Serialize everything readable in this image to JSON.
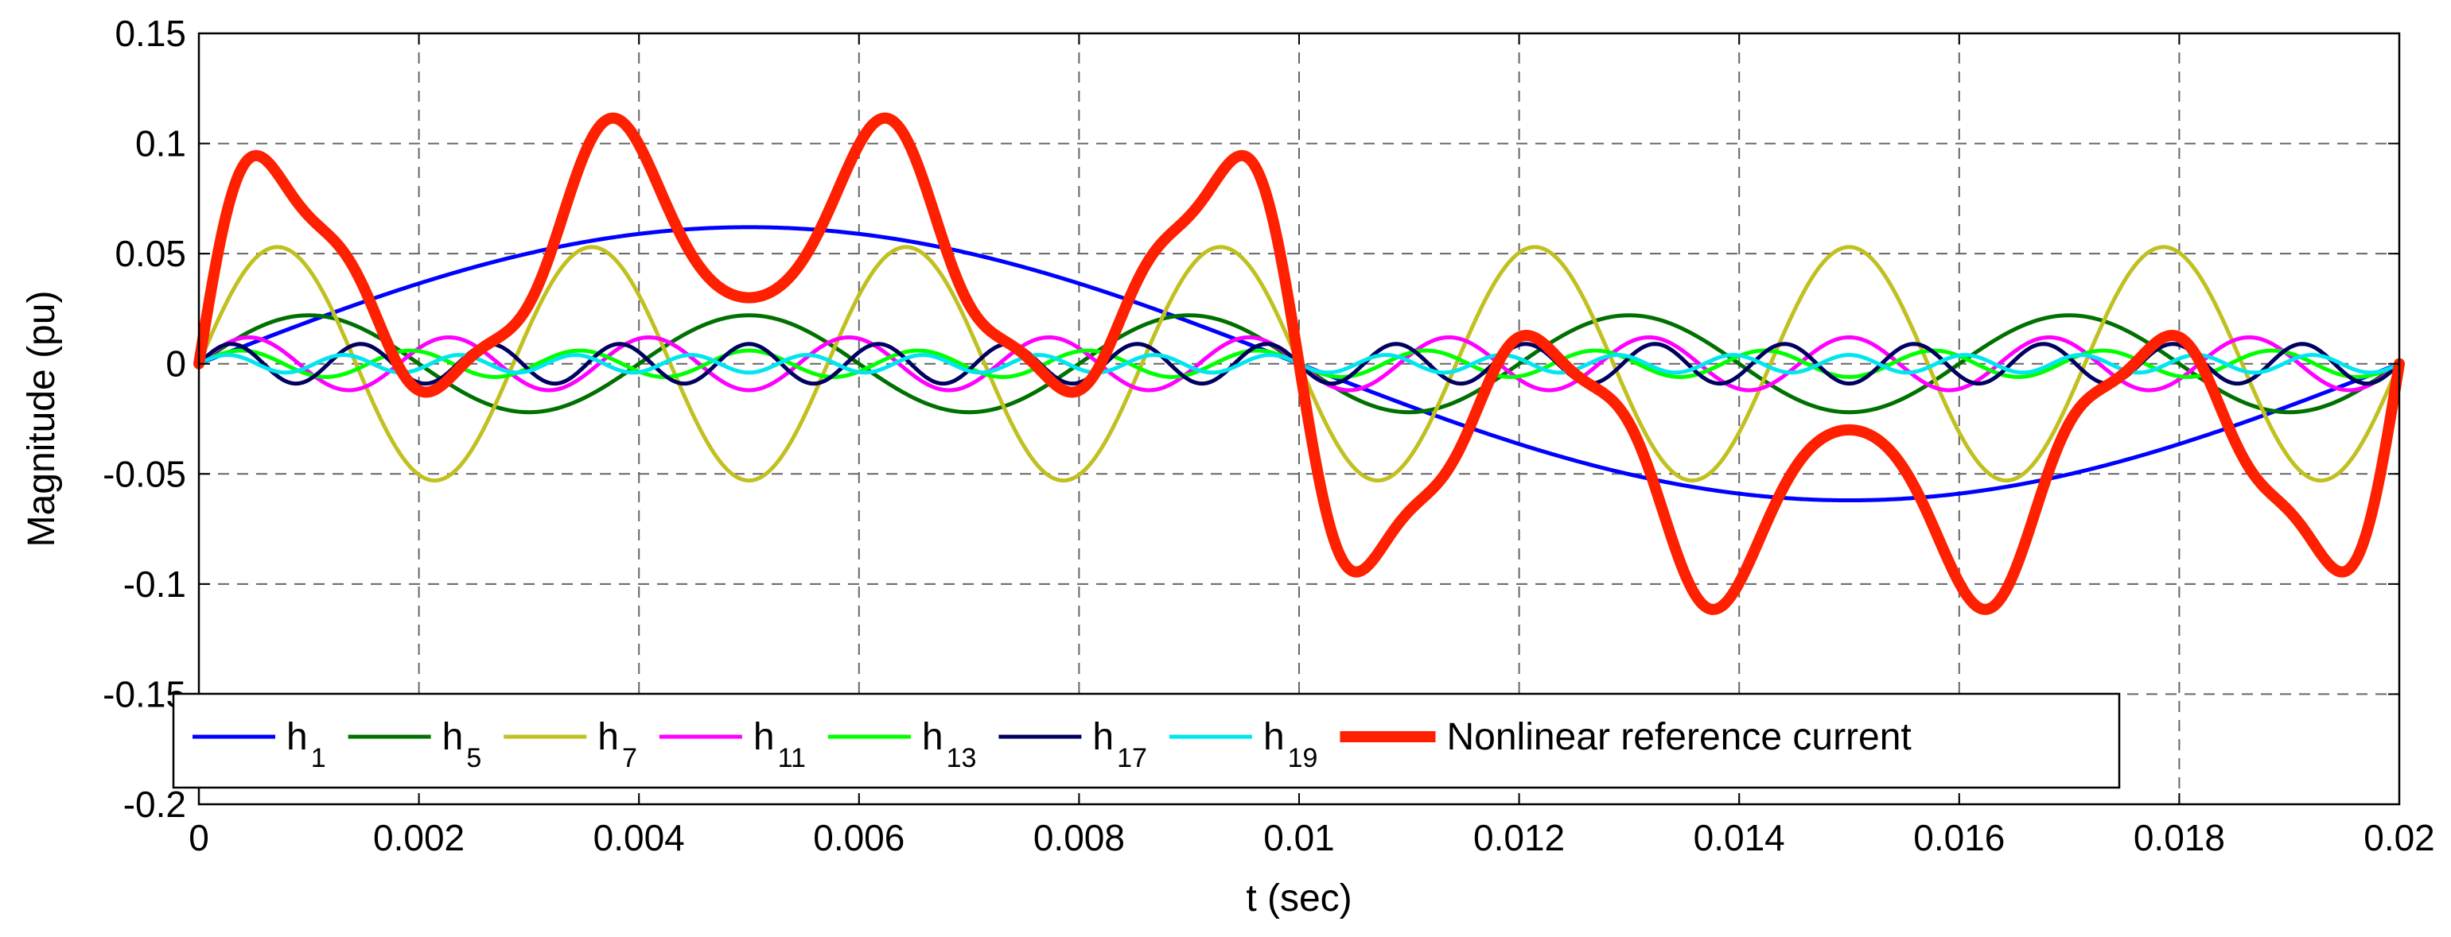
{
  "chart_data": {
    "type": "line",
    "title": "",
    "xlabel": "t (sec)",
    "ylabel": "Magnitude (pu)",
    "xlim": [
      0,
      0.02
    ],
    "ylim": [
      -0.2,
      0.15
    ],
    "grid": true,
    "legend_position": "bottom-left (inside)",
    "x_ticks": [
      0,
      0.002,
      0.004,
      0.006,
      0.008,
      0.01,
      0.012,
      0.014,
      0.016,
      0.018,
      0.02
    ],
    "x_tick_labels": [
      "0",
      "0.002",
      "0.004",
      "0.006",
      "0.008",
      "0.01",
      "0.012",
      "0.014",
      "0.016",
      "0.018",
      "0.02"
    ],
    "y_ticks": [
      0.15,
      0.1,
      0.05,
      0,
      -0.05,
      -0.1,
      -0.15,
      -0.2
    ],
    "y_tick_labels": [
      "0.15",
      "0.1",
      "0.05",
      "0",
      "-0.05",
      "-0.1",
      "-0.15",
      "-0.2"
    ],
    "fundamental_frequency_hz": 50,
    "series": [
      {
        "name": "h1",
        "label_main": "h",
        "label_sub": "1",
        "harmonic": 1,
        "amplitude": 0.062,
        "color": "#0000ff",
        "line_width": 5
      },
      {
        "name": "h5",
        "label_main": "h",
        "label_sub": "5",
        "harmonic": 5,
        "amplitude": 0.022,
        "color": "#007000",
        "line_width": 5
      },
      {
        "name": "h7",
        "label_main": "h",
        "label_sub": "7",
        "harmonic": 7,
        "amplitude": 0.053,
        "color": "#c0c020",
        "line_width": 5
      },
      {
        "name": "h11",
        "label_main": "h",
        "label_sub": "11",
        "harmonic": 11,
        "amplitude": 0.012,
        "color": "#ff00ff",
        "line_width": 5
      },
      {
        "name": "h13",
        "label_main": "h",
        "label_sub": "13",
        "harmonic": 13,
        "amplitude": 0.006,
        "color": "#00ff00",
        "line_width": 5
      },
      {
        "name": "h17",
        "label_main": "h",
        "label_sub": "17",
        "harmonic": 17,
        "amplitude": 0.009,
        "color": "#000060",
        "line_width": 5
      },
      {
        "name": "h19",
        "label_main": "h",
        "label_sub": "19",
        "harmonic": 19,
        "amplitude": 0.004,
        "color": "#00e5ee",
        "line_width": 5
      },
      {
        "name": "Nonlinear reference current",
        "label_main": "Nonlinear reference current",
        "label_sub": "",
        "harmonic": 0,
        "amplitude": null,
        "color": "#ff2000",
        "line_width": 14,
        "is_sum": true
      }
    ]
  }
}
